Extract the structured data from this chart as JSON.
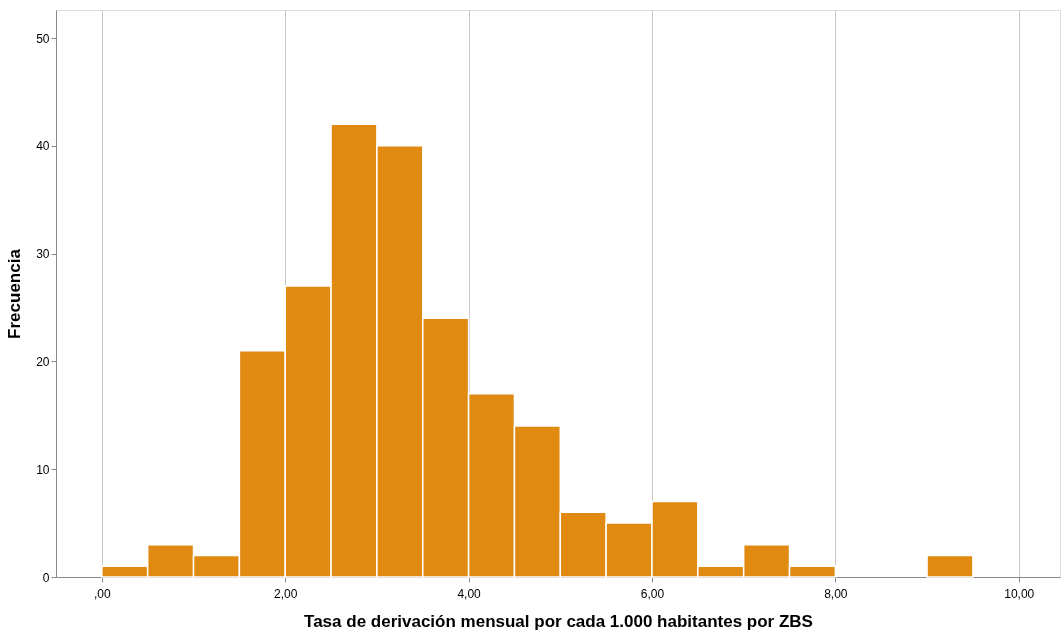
{
  "chart_data": {
    "type": "histogram",
    "xlabel": "Tasa de derivación mensual por cada 1.000 habitantes por ZBS",
    "ylabel": "Frecuencia",
    "bins": [
      0,
      0.5,
      1,
      1.5,
      2,
      2.5,
      3,
      3.5,
      4,
      4.5,
      5,
      5.5,
      6,
      6.5,
      7,
      7.5,
      8,
      8.5,
      9,
      9.5
    ],
    "values": [
      1,
      3,
      2,
      21,
      27,
      42,
      40,
      24,
      17,
      14,
      6,
      5,
      7,
      1,
      3,
      1,
      0,
      0,
      2
    ],
    "color": "#e08a12",
    "xlim": [
      -0.5,
      10.45
    ],
    "ylim": [
      0,
      52.6
    ],
    "xticks": [
      {
        "value": 0,
        "label": ",00"
      },
      {
        "value": 2,
        "label": "2,00"
      },
      {
        "value": 4,
        "label": "4,00"
      },
      {
        "value": 6,
        "label": "6,00"
      },
      {
        "value": 8,
        "label": "8,00"
      },
      {
        "value": 10,
        "label": "10,00"
      }
    ],
    "yticks": [
      0,
      10,
      20,
      30,
      40,
      50
    ],
    "grid": "x"
  }
}
